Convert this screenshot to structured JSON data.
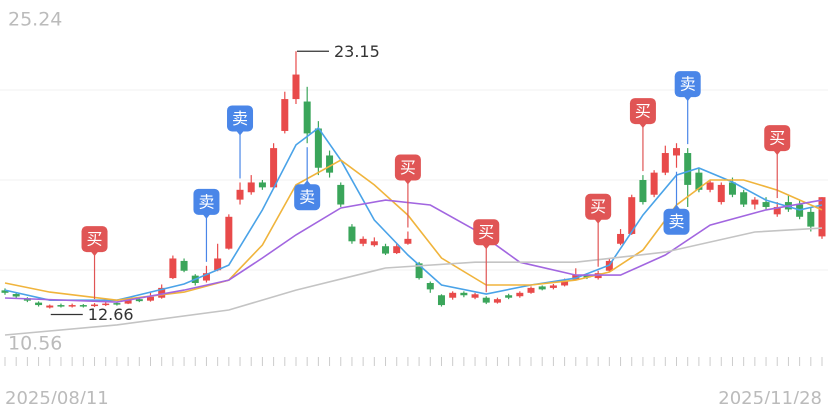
{
  "chart_data": {
    "type": "candlestick",
    "ylim": [
      10.56,
      25.24
    ],
    "yticks": [
      25.24,
      10.56
    ],
    "gridlines": [
      21.57,
      17.9,
      14.23
    ],
    "x_labels": [
      {
        "i": 0,
        "label": "2025/08/11"
      },
      {
        "i": 73,
        "label": "2025/11/28"
      }
    ],
    "up_color": "#e84a4a",
    "down_color": "#3aa55a",
    "open": [
      13.4,
      13.25,
      13.08,
      12.9,
      12.7,
      12.8,
      12.74,
      12.8,
      12.76,
      12.8,
      12.88,
      12.86,
      13.04,
      12.98,
      13.1,
      13.9,
      14.6,
      14.0,
      13.8,
      14.22,
      15.1,
      17.1,
      17.4,
      17.8,
      17.6,
      19.9,
      21.2,
      21.1,
      20.0,
      18.9,
      17.7,
      16.0,
      15.3,
      15.24,
      15.2,
      14.92,
      15.3,
      14.5,
      13.7,
      13.2,
      13.1,
      13.3,
      13.1,
      13.1,
      12.9,
      13.2,
      13.16,
      13.3,
      13.56,
      13.5,
      13.6,
      13.84,
      14.04,
      13.9,
      14.2,
      15.3,
      15.7,
      17.9,
      17.3,
      18.2,
      18.9,
      19.0,
      18.2,
      17.5,
      17.0,
      17.8,
      17.4,
      16.9,
      17.0,
      16.5,
      17.0,
      16.9,
      16.6,
      15.6
    ],
    "high": [
      13.48,
      13.3,
      13.12,
      12.95,
      12.82,
      12.86,
      12.86,
      12.84,
      12.88,
      12.92,
      12.92,
      13.08,
      13.1,
      13.3,
      13.64,
      14.82,
      14.7,
      14.06,
      14.4,
      15.3,
      16.5,
      17.8,
      18.1,
      17.9,
      19.4,
      21.5,
      23.15,
      21.7,
      20.3,
      19.1,
      17.8,
      16.1,
      15.6,
      15.56,
      15.3,
      15.3,
      15.8,
      14.56,
      13.76,
      13.24,
      13.36,
      13.36,
      13.3,
      13.16,
      13.1,
      13.26,
      13.36,
      13.56,
      13.6,
      13.66,
      13.88,
      14.3,
      14.1,
      14.2,
      14.7,
      15.9,
      17.3,
      18.1,
      18.3,
      19.3,
      19.4,
      19.2,
      18.4,
      17.9,
      17.8,
      18.0,
      17.5,
      17.2,
      17.2,
      17.0,
      17.3,
      17.1,
      16.8,
      17.2
    ],
    "low": [
      13.22,
      13.08,
      12.92,
      12.74,
      12.66,
      12.7,
      12.7,
      12.7,
      12.72,
      12.76,
      12.78,
      12.84,
      12.92,
      12.94,
      13.06,
      13.86,
      14.14,
      13.6,
      13.72,
      14.18,
      15.06,
      16.9,
      17.3,
      17.5,
      17.55,
      19.8,
      21.0,
      19.4,
      18.1,
      18.0,
      16.8,
      15.3,
      15.2,
      15.18,
      14.84,
      14.88,
      15.26,
      13.84,
      13.3,
      12.74,
      13.02,
      13.12,
      13.04,
      12.84,
      12.86,
      13.04,
      13.1,
      13.26,
      13.4,
      13.44,
      13.56,
      13.8,
      13.86,
      13.84,
      14.16,
      15.24,
      15.66,
      16.9,
      17.2,
      18.1,
      18.4,
      16.8,
      17.4,
      17.4,
      16.9,
      17.2,
      16.8,
      16.7,
      16.7,
      16.4,
      16.6,
      16.3,
      15.8,
      15.5
    ],
    "close": [
      13.3,
      13.15,
      12.98,
      12.8,
      12.78,
      12.74,
      12.8,
      12.75,
      12.82,
      12.86,
      12.82,
      13.02,
      12.96,
      13.14,
      13.5,
      14.7,
      14.2,
      13.7,
      14.1,
      14.7,
      16.4,
      17.5,
      17.8,
      17.6,
      19.2,
      21.2,
      22.2,
      19.8,
      18.4,
      18.2,
      16.9,
      15.4,
      15.5,
      15.4,
      14.9,
      15.2,
      15.5,
      13.9,
      13.44,
      12.8,
      13.3,
      13.2,
      13.24,
      12.9,
      13.04,
      13.1,
      13.3,
      13.5,
      13.44,
      13.6,
      13.8,
      14.04,
      13.92,
      14.1,
      14.6,
      15.7,
      17.2,
      17.0,
      18.2,
      19.0,
      19.2,
      17.7,
      17.5,
      17.8,
      17.7,
      17.3,
      16.9,
      17.1,
      16.8,
      16.8,
      16.7,
      16.4,
      16.0,
      17.2
    ],
    "series": [
      {
        "color": "#4aa3e8",
        "x": [
          0,
          4,
          10,
          16,
          20,
          23,
          26,
          28,
          30,
          33,
          36,
          39,
          43,
          47,
          51,
          54,
          57,
          60,
          62,
          65,
          68,
          71,
          73
        ],
        "values": [
          13.41,
          13.0,
          13.0,
          13.66,
          14.43,
          16.68,
          19.33,
          20.02,
          18.71,
          16.27,
          14.84,
          13.62,
          13.25,
          13.62,
          13.9,
          14.43,
          16.47,
          18.1,
          18.39,
          17.82,
          17.08,
          16.68,
          16.88
        ]
      },
      {
        "color": "#f0b43c",
        "x": [
          0,
          4,
          10,
          16,
          20,
          23,
          26,
          30,
          33,
          36,
          39,
          43,
          47,
          51,
          54,
          57,
          60,
          63,
          66,
          69,
          73
        ],
        "values": [
          13.7,
          13.33,
          13.0,
          13.33,
          13.82,
          15.25,
          17.7,
          18.71,
          17.7,
          16.47,
          14.72,
          13.62,
          13.62,
          13.82,
          14.15,
          15.04,
          16.88,
          17.9,
          17.9,
          17.49,
          16.68
        ]
      },
      {
        "color": "#a266e0",
        "x": [
          0,
          10,
          16,
          20,
          23,
          26,
          30,
          34,
          38,
          42,
          46,
          51,
          55,
          59,
          63,
          68,
          73
        ],
        "values": [
          13.09,
          12.92,
          13.41,
          13.82,
          14.72,
          15.66,
          16.76,
          17.08,
          16.88,
          15.86,
          14.55,
          14.02,
          14.02,
          14.84,
          16.06,
          16.68,
          17.08
        ]
      },
      {
        "color": "#c4c4c4",
        "x": [
          0,
          10,
          20,
          26,
          34,
          42,
          51,
          59,
          67,
          73
        ],
        "values": [
          11.58,
          11.99,
          12.6,
          13.41,
          14.31,
          14.55,
          14.55,
          14.96,
          15.78,
          15.94
        ]
      }
    ],
    "signals": [
      {
        "i": 8,
        "label": "买",
        "color": "#e05555",
        "position": "above"
      },
      {
        "i": 18,
        "label": "卖",
        "color": "#4a86e8",
        "position": "above"
      },
      {
        "i": 21,
        "label": "卖",
        "color": "#4a86e8",
        "position": "above"
      },
      {
        "i": 27,
        "label": "卖",
        "color": "#4a86e8",
        "position": "below"
      },
      {
        "i": 36,
        "label": "买",
        "color": "#e05555",
        "position": "above"
      },
      {
        "i": 43,
        "label": "买",
        "color": "#e05555",
        "position": "above"
      },
      {
        "i": 53,
        "label": "买",
        "color": "#e05555",
        "position": "above"
      },
      {
        "i": 57,
        "label": "买",
        "color": "#e05555",
        "position": "above"
      },
      {
        "i": 60,
        "label": "卖",
        "color": "#4a86e8",
        "position": "below"
      },
      {
        "i": 61,
        "label": "卖",
        "color": "#4a86e8",
        "position": "above"
      },
      {
        "i": 69,
        "label": "买",
        "color": "#e05555",
        "position": "above"
      }
    ],
    "annotations": [
      {
        "i": 26,
        "value": 23.15,
        "side": "high"
      },
      {
        "i": 4,
        "value": 12.66,
        "side": "low"
      }
    ]
  }
}
